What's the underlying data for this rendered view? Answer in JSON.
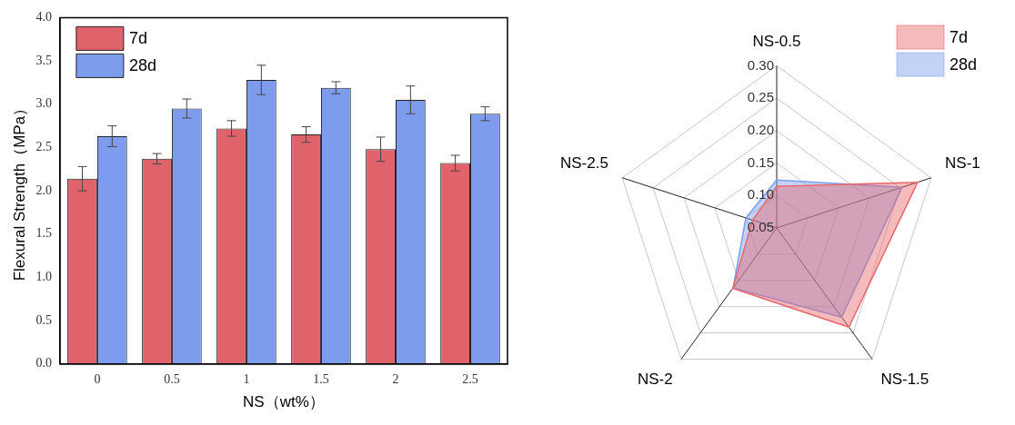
{
  "chart_data": [
    {
      "type": "bar",
      "xlabel": "NS（wt%）",
      "ylabel": "Flexural Strength（MPa）",
      "categories": [
        "0",
        "0.5",
        "1",
        "1.5",
        "2",
        "2.5"
      ],
      "series": [
        {
          "name": "7d",
          "color": "#e0636b",
          "values": [
            2.14,
            2.37,
            2.72,
            2.65,
            2.48,
            2.32
          ],
          "errors": [
            0.14,
            0.06,
            0.09,
            0.09,
            0.14,
            0.09
          ]
        },
        {
          "name": "28d",
          "color": "#7d9cee",
          "values": [
            2.63,
            2.95,
            3.28,
            3.19,
            3.05,
            2.89
          ],
          "errors": [
            0.12,
            0.11,
            0.17,
            0.07,
            0.16,
            0.08
          ]
        }
      ],
      "ylim": [
        0,
        4
      ],
      "yticks": [
        {
          "value": 0,
          "label": "0.0"
        },
        {
          "value": 0.5,
          "label": "0.5"
        },
        {
          "value": 1,
          "label": "1.0"
        },
        {
          "value": 1.5,
          "label": "1.5"
        },
        {
          "value": 2,
          "label": "2.0"
        },
        {
          "value": 2.5,
          "label": "2.5"
        },
        {
          "value": 3,
          "label": "3.0"
        },
        {
          "value": 3.5,
          "label": "3.5"
        },
        {
          "value": 4,
          "label": "4.0"
        }
      ],
      "grid": false,
      "legend": "top left"
    },
    {
      "type": "radar",
      "categories": [
        "NS-0.5",
        "NS-1",
        "NS-1.5",
        "NS-2",
        "NS-2.5"
      ],
      "series": [
        {
          "name": "7d",
          "color": "#e8676b",
          "values": [
            0.114,
            0.278,
            0.239,
            0.165,
            0.089
          ]
        },
        {
          "name": "28d",
          "color": "#7b9ef0",
          "values": [
            0.124,
            0.253,
            0.22,
            0.164,
            0.1
          ]
        }
      ],
      "ylim": [
        0.05,
        0.3
      ],
      "yticks": [
        {
          "value": 0.05,
          "label": "0.05"
        },
        {
          "value": 0.1,
          "label": "0.10"
        },
        {
          "value": 0.15,
          "label": "0.15"
        },
        {
          "value": 0.2,
          "label": "0.20"
        },
        {
          "value": 0.25,
          "label": "0.25"
        },
        {
          "value": 0.3,
          "label": "0.30"
        }
      ],
      "grid": true,
      "legend": "top right"
    }
  ]
}
